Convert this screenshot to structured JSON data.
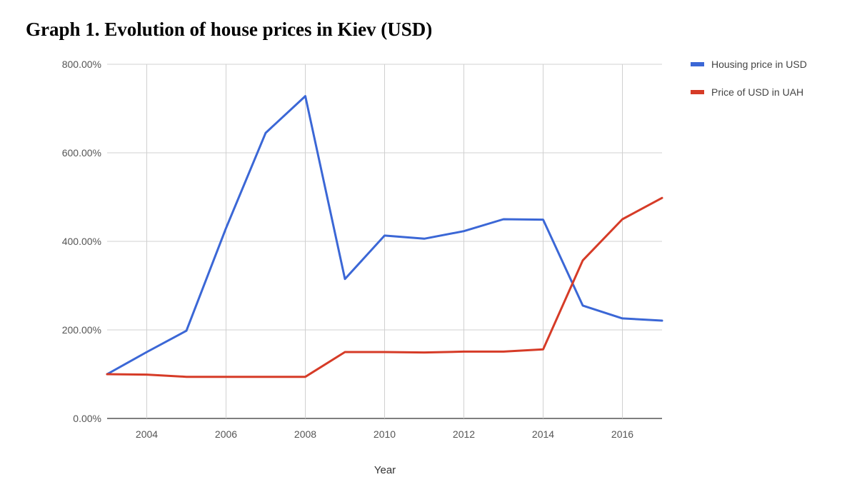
{
  "chart_data": {
    "type": "line",
    "title": "Graph 1. Evolution of house prices in Kiev (USD)",
    "xlabel": "Year",
    "ylabel": "",
    "x": [
      2003,
      2004,
      2005,
      2006,
      2007,
      2008,
      2009,
      2010,
      2011,
      2012,
      2013,
      2014,
      2015,
      2016,
      2017
    ],
    "xlim": [
      2003,
      2017
    ],
    "ylim": [
      0,
      800
    ],
    "yticks": [
      0,
      200,
      400,
      600,
      800
    ],
    "ytick_labels": [
      "0.00%",
      "200.00%",
      "400.00%",
      "600.00%",
      "800.00%"
    ],
    "xticks": [
      2004,
      2006,
      2008,
      2010,
      2012,
      2014,
      2016
    ],
    "xtick_labels": [
      "2004",
      "2006",
      "2008",
      "2010",
      "2012",
      "2014",
      "2016"
    ],
    "grid": true,
    "legend_position": "right",
    "series": [
      {
        "name": "Housing price in USD",
        "color": "#3b67d6",
        "values": [
          100,
          150,
          198,
          430,
          645,
          728,
          315,
          413,
          406,
          423,
          450,
          449,
          255,
          226,
          221
        ]
      },
      {
        "name": "Price of USD in UAH",
        "color": "#d63b27",
        "values": [
          100,
          99,
          94,
          94,
          94,
          94,
          150,
          150,
          149,
          151,
          151,
          156,
          357,
          450,
          498
        ]
      }
    ]
  }
}
